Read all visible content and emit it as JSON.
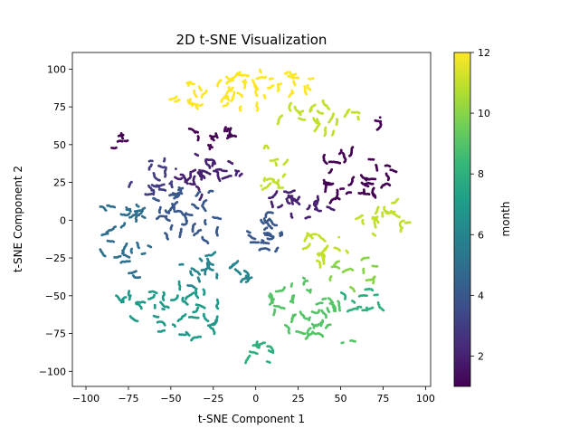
{
  "chart_data": {
    "type": "scatter",
    "title": "2D t-SNE Visualization",
    "xlabel": "t-SNE Component 1",
    "ylabel": "t-SNE Component 2",
    "xlim": [
      -108,
      103
    ],
    "ylim": [
      -110,
      111
    ],
    "xticks": [
      -100,
      -75,
      -50,
      -25,
      0,
      25,
      50,
      75,
      100
    ],
    "yticks": [
      -100,
      -75,
      -50,
      -25,
      0,
      25,
      50,
      75,
      100
    ],
    "grid": false,
    "colormap": "viridis",
    "colorbar": {
      "label": "month",
      "range": [
        1,
        12
      ],
      "ticks": [
        2,
        4,
        6,
        8,
        10,
        12
      ],
      "stops": [
        "#440154",
        "#482878",
        "#3e4989",
        "#31688e",
        "#26828e",
        "#1f9e89",
        "#35b779",
        "#6ece58",
        "#b5de2b",
        "#fde725"
      ]
    },
    "color_by": "month",
    "clusters": [
      {
        "month": 12,
        "center": [
          -20,
          85
        ],
        "spread": [
          28,
          13
        ],
        "points": 175
      },
      {
        "month": 12,
        "center": [
          20,
          92
        ],
        "spread": [
          22,
          8
        ],
        "points": 75
      },
      {
        "month": 11,
        "center": [
          35,
          68
        ],
        "spread": [
          25,
          10
        ],
        "points": 115
      },
      {
        "month": 11,
        "center": [
          10,
          35
        ],
        "spread": [
          12,
          16
        ],
        "points": 55
      },
      {
        "month": 11,
        "center": [
          75,
          0
        ],
        "spread": [
          14,
          14
        ],
        "points": 85
      },
      {
        "month": 11,
        "center": [
          45,
          -18
        ],
        "spread": [
          18,
          10
        ],
        "points": 75
      },
      {
        "month": 10,
        "center": [
          55,
          -35
        ],
        "spread": [
          20,
          10
        ],
        "points": 55
      },
      {
        "month": 9,
        "center": [
          25,
          -55
        ],
        "spread": [
          24,
          18
        ],
        "points": 155
      },
      {
        "month": 9,
        "center": [
          40,
          -75
        ],
        "spread": [
          18,
          10
        ],
        "points": 55
      },
      {
        "month": 8,
        "center": [
          5,
          -88
        ],
        "spread": [
          10,
          8
        ],
        "points": 45
      },
      {
        "month": 8,
        "center": [
          65,
          -52
        ],
        "spread": [
          14,
          9
        ],
        "points": 55
      },
      {
        "month": 7,
        "center": [
          -40,
          -62
        ],
        "spread": [
          24,
          18
        ],
        "points": 165
      },
      {
        "month": 7,
        "center": [
          -70,
          -55
        ],
        "spread": [
          14,
          10
        ],
        "points": 55
      },
      {
        "month": 6,
        "center": [
          -25,
          -35
        ],
        "spread": [
          22,
          12
        ],
        "points": 110
      },
      {
        "month": 5,
        "center": [
          -75,
          -10
        ],
        "spread": [
          16,
          28
        ],
        "points": 145
      },
      {
        "month": 4,
        "center": [
          -40,
          5
        ],
        "spread": [
          25,
          20
        ],
        "points": 175
      },
      {
        "month": 4,
        "center": [
          5,
          -10
        ],
        "spread": [
          12,
          14
        ],
        "points": 95
      },
      {
        "month": 3,
        "center": [
          -60,
          30
        ],
        "spread": [
          14,
          14
        ],
        "points": 75
      },
      {
        "month": 2,
        "center": [
          -25,
          30
        ],
        "spread": [
          20,
          16
        ],
        "points": 135
      },
      {
        "month": 2,
        "center": [
          25,
          10
        ],
        "spread": [
          20,
          10
        ],
        "points": 95
      },
      {
        "month": 1,
        "center": [
          55,
          30
        ],
        "spread": [
          25,
          16
        ],
        "points": 175
      },
      {
        "month": 1,
        "center": [
          -30,
          55
        ],
        "spread": [
          18,
          5
        ],
        "points": 55
      },
      {
        "month": 1,
        "center": [
          -82,
          52
        ],
        "spread": [
          4,
          4
        ],
        "points": 20
      },
      {
        "month": 1,
        "center": [
          72,
          68
        ],
        "spread": [
          3,
          4
        ],
        "points": 12
      }
    ]
  }
}
